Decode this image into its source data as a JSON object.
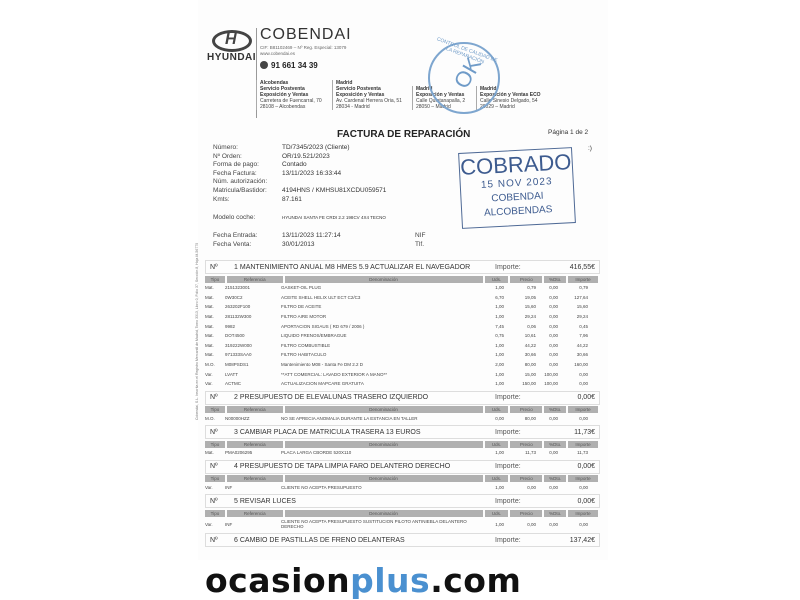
{
  "company": {
    "brand": "COBENDAI",
    "maker": "HYUNDAI",
    "cif": "CIF: B81102469 – Nº Reg. Especial: 13079",
    "web": "www.cobendai.es",
    "phone": "91 661 34 39",
    "addresses": [
      {
        "city": "Alcobendas",
        "l1": "Servicio Postventa",
        "l2": "Exposición y Ventas",
        "l3": "Carretera de Fuencarral, 70",
        "l4": "28108 – Alcobendas"
      },
      {
        "city": "Madrid",
        "l1": "Servicio Postventa",
        "l2": "Exposición y Ventas",
        "l3": "Av. Cardenal Herrera Oria, 51",
        "l4": "28034 - Madrid"
      },
      {
        "city": "Madrid",
        "l1": "Exposición y Ventas",
        "l2": "Calle Quintanapalla, 2",
        "l3": "28050 – Madrid",
        "l4": ""
      },
      {
        "city": "Madrid",
        "l1": "Exposición y Ventas ECO",
        "l2": "Calle Sinesio Delgado, 54",
        "l3": "28029 – Madrid",
        "l4": ""
      }
    ],
    "seal": {
      "ring": "CONTROL DE CALIDAD DE LA REPARACIÓN",
      "mark": "OK"
    },
    "registry": "Cobendai, S.L. Inscrita en el Registro Mercantil de Madrid, Tomo 3313, Libro 0, Folio 37, Sección 8, Hoja M-56775"
  },
  "invoice": {
    "title": "FACTURA DE REPARACIÓN",
    "page": "Página 1 de 2",
    "mark": ":)",
    "fields": [
      {
        "label": "Número:",
        "value": "TD/7345/2023  (Cliente)"
      },
      {
        "label": "Nº Orden:",
        "value": "OR/19.521/2023"
      },
      {
        "label": "Forma de pago:",
        "value": "Contado"
      },
      {
        "label": "Fecha Factura:",
        "value": "13/11/2023  16:33:44"
      },
      {
        "label": "Núm. autorización:",
        "value": ""
      },
      {
        "label": "Matricula/Bastidor:",
        "value": "4194HNS / KMHSU81XCDU059571"
      },
      {
        "label": "Kmts:",
        "value": " 87.161"
      }
    ],
    "modelo_label": "Modelo coche:",
    "modelo": "HYUNDAI SANTA FE CRDI 2.2 198CV 4X4 TECNO",
    "entrada_label": "Fecha Entrada:",
    "entrada": "13/11/2023  11:27:14",
    "venta_label": "Fecha Venta:",
    "venta": "30/01/2013",
    "nif_label": "NIF",
    "tlf_label": "Tlf."
  },
  "table_headers": {
    "tipo": "Tipo",
    "ref": "Referencia",
    "den": "Denominación",
    "uds": "Uds.",
    "precio": "Precio",
    "dto": "%Dto.",
    "importe": "Importe"
  },
  "labels": {
    "num": "Nº",
    "importe": "Importe:"
  },
  "sections": [
    {
      "n": "1",
      "title": "MANTENIMIENTO ANUAL  M8 HMES 5.9 ACTUALIZAR EL NAVEGADOR",
      "importe": "416,55€",
      "rows": [
        [
          "Mat.",
          "2151323001",
          "GASKET-OIL PLUG",
          "1,00",
          "0,79",
          "0,00",
          "0,79"
        ],
        [
          "Mat.",
          "0W30C2",
          "ACEITE SHELL HELIX ULT ECT C2/C3",
          "6,70",
          "19,05",
          "0,00",
          "127,64"
        ],
        [
          "Mat.",
          "263202F100",
          "FILTRO DE ACEITE",
          "1,00",
          "15,60",
          "0,00",
          "15,60"
        ],
        [
          "Mat.",
          "281132W300",
          "FILTRO AIRE MOTOR",
          "1,00",
          "29,24",
          "0,00",
          "29,24"
        ],
        [
          "Mat.",
          "9982",
          "APORTACION SIGAUS ( RD 679 / 2006 )",
          "7,45",
          "0,06",
          "0,00",
          "0,45"
        ],
        [
          "Mat.",
          "DOT4500",
          "LIQUIDO FRENOS/EMBRAGUE",
          "0,75",
          "10,61",
          "0,00",
          "7,96"
        ],
        [
          "Mat.",
          "319222W000",
          "FILTRO COMBUSTIBLE",
          "1,00",
          "44,22",
          "0,00",
          "44,22"
        ],
        [
          "Mat.",
          "971333SAA0",
          "FILTRO HABITACULO",
          "1,00",
          "30,66",
          "0,00",
          "30,66"
        ],
        [
          "M.O.",
          "M08PSDS1",
          "Mantenimiento M08 - Santa Fe DM 2.2 D",
          "2,00",
          "80,00",
          "0,00",
          "160,00"
        ],
        [
          "Var.",
          "LVATT",
          "**ATT COMERCIAL: LAVADO EXTERIOR A MANO**",
          "1,00",
          "15,00",
          "100,00",
          "0,00"
        ],
        [
          "Var.",
          "ACTMC",
          "ACTUALIZACION MAPCARE GRATUITA",
          "1,00",
          "150,00",
          "100,00",
          "0,00"
        ]
      ]
    },
    {
      "n": "2",
      "title": "PRESUPUESTO DE ELEVALUNAS TRASERO IZQUIERDO",
      "importe": "0,00€",
      "rows": [
        [
          "M.O.",
          "N00000HZZ",
          "NO SE APRECIA ANOMALIA DURANTE LA ESTANCIA EN TALLER",
          "0,00",
          "80,00",
          "0,00",
          "0,00"
        ]
      ]
    },
    {
      "n": "3",
      "title": "CAMBIAR PLACA DE MATRICULA TRASERA 13 EUROS",
      "importe": "11,73€",
      "rows": [
        [
          "Mat.",
          "PMA0206295",
          "PLACA LARGA CBORDE 520X110",
          "1,00",
          "11,73",
          "0,00",
          "11,73"
        ]
      ]
    },
    {
      "n": "4",
      "title": "PRESUPUESTO DE TAPA LIMPIA FARO DELANTERO DERECHO",
      "importe": "0,00€",
      "rows": [
        [
          "Var.",
          "INF",
          "CLIENTE NO ACEPTA PRESUPUESTO",
          "1,00",
          "0,00",
          "0,00",
          "0,00"
        ]
      ]
    },
    {
      "n": "5",
      "title": "REVISAR LUCES",
      "importe": "0,00€",
      "rows": [
        [
          "Var.",
          "INF",
          "CLIENTE NO ACEPTA PRESUPUESTO SUSTITUCION PILOTO ANTINIEBLA DELANTERO DERECHO",
          "1,00",
          "0,00",
          "0,00",
          "0,00"
        ]
      ]
    },
    {
      "n": "6",
      "title": "CAMBIO DE PASTILLAS DE FRENO DELANTERAS",
      "importe": "137,42€",
      "rows": []
    }
  ],
  "stamp": {
    "l1": "COBRADO",
    "l2": "15 NOV 2023",
    "l3": "COBENDAI",
    "l4": "ALCOBENDAS",
    "color": "#3d5b8f"
  },
  "footer": {
    "a": "ocasion",
    "b": "plus",
    "c": ".com",
    "accent": "#4a90d0"
  }
}
